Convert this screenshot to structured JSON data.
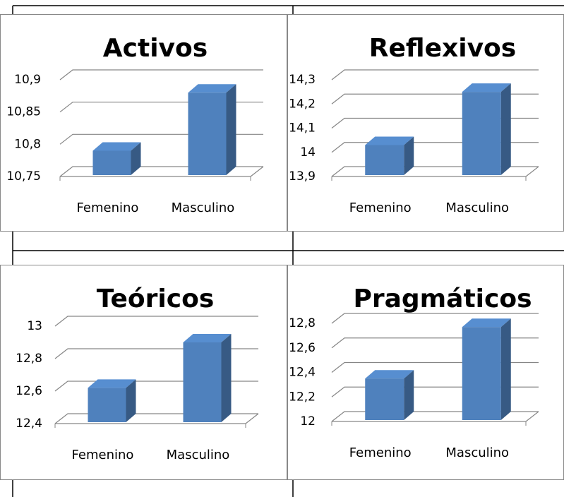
{
  "chart_data": [
    {
      "type": "bar3d",
      "title": "Activos",
      "categories": [
        "Femenino",
        "Masculino"
      ],
      "values": [
        10.79,
        10.88
      ],
      "color": "#4f81bd",
      "ylim": [
        10.75,
        10.9
      ],
      "yticks": [
        {
          "value": 10.75,
          "label": "10,75"
        },
        {
          "value": 10.8,
          "label": "10,8"
        },
        {
          "value": 10.85,
          "label": "10,85"
        },
        {
          "value": 10.9,
          "label": "10,9"
        }
      ],
      "grid": true
    },
    {
      "type": "bar3d",
      "title": "Reflexivos",
      "categories": [
        "Femenino",
        "Masculino"
      ],
      "values": [
        14.03,
        14.25
      ],
      "color": "#4f81bd",
      "ylim": [
        13.9,
        14.3
      ],
      "yticks": [
        {
          "value": 13.9,
          "label": "13,9"
        },
        14,
        {
          "value": 14.1,
          "label": "14,1"
        },
        {
          "value": 14.2,
          "label": "14,2"
        },
        {
          "value": 14.3,
          "label": "14,3"
        }
      ],
      "grid": true
    },
    {
      "type": "bar3d",
      "title": "Teóricos",
      "categories": [
        "Femenino",
        "Masculino"
      ],
      "values": [
        12.62,
        12.9
      ],
      "color": "#4f81bd",
      "ylim": [
        12.4,
        13
      ],
      "yticks": [
        {
          "value": 12.4,
          "label": "12,4"
        },
        {
          "value": 12.6,
          "label": "12,6"
        },
        {
          "value": 12.8,
          "label": "12,8"
        },
        13
      ],
      "grid": true
    },
    {
      "type": "bar3d",
      "title": "Pragmáticos",
      "categories": [
        "Femenino",
        "Masculino"
      ],
      "values": [
        12.35,
        12.77
      ],
      "color": "#4f81bd",
      "ylim": [
        12,
        12.8
      ],
      "yticks": [
        12,
        {
          "value": 12.2,
          "label": "12,2"
        },
        {
          "value": 12.4,
          "label": "12,4"
        },
        {
          "value": 12.6,
          "label": "12,6"
        },
        {
          "value": 12.8,
          "label": "12,8"
        }
      ],
      "grid": true
    }
  ]
}
